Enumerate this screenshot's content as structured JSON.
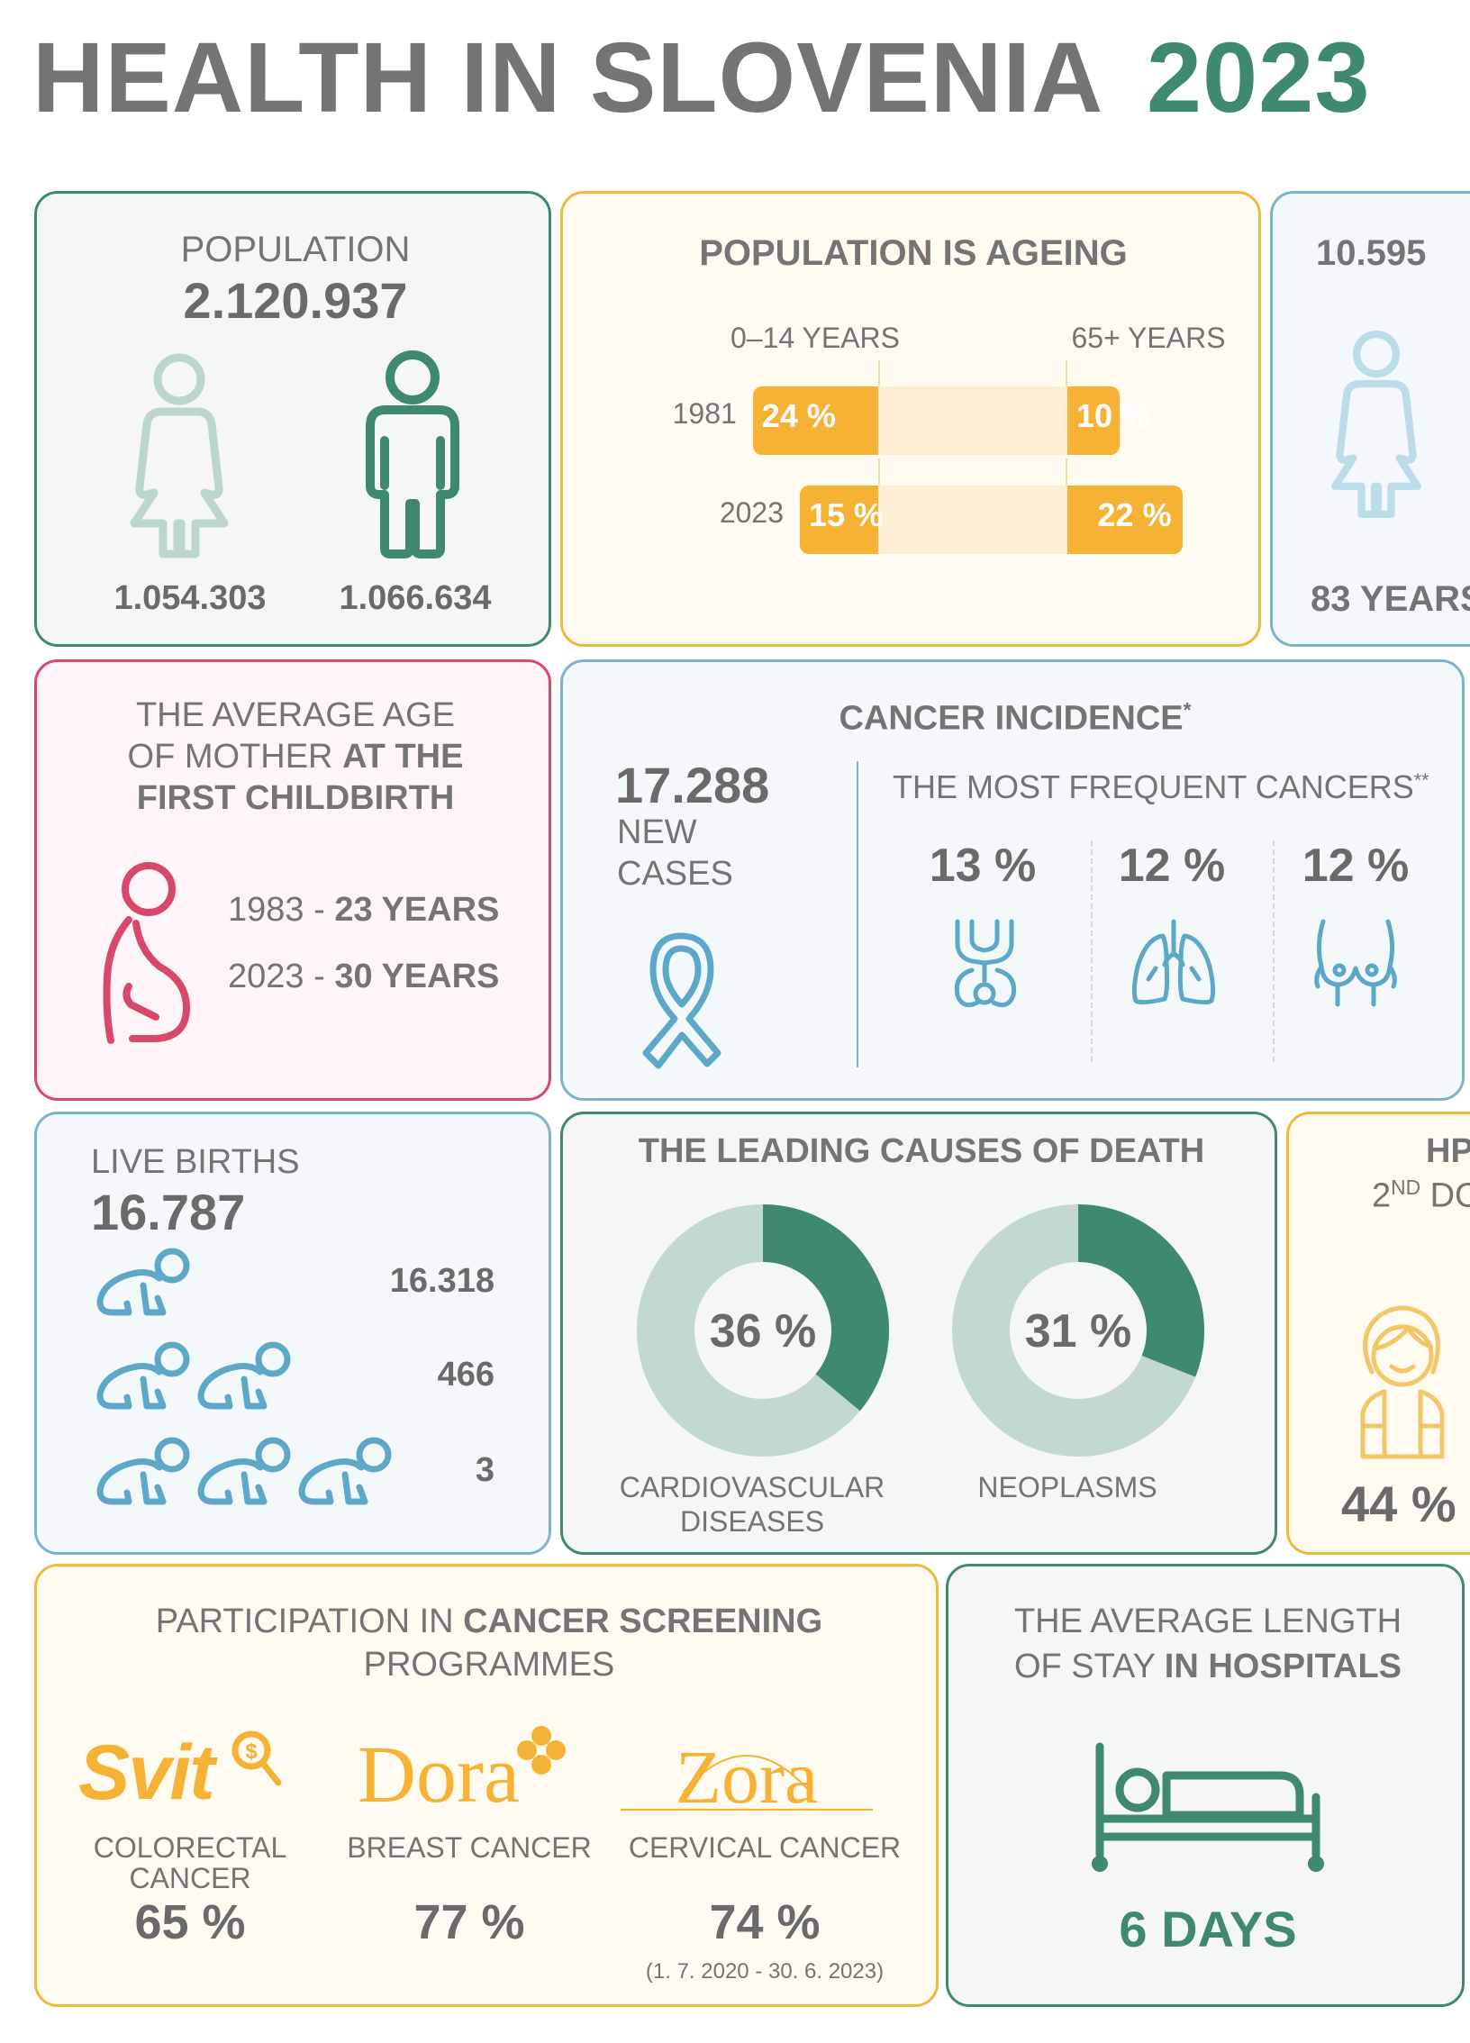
{
  "title": {
    "main": "HEALTH IN SLOVENIA",
    "year": "2023"
  },
  "colors": {
    "green": "#3f8a6f",
    "yellow": "#f6b234",
    "blue": "#5da8c8",
    "pink": "#d9476b",
    "gray": "#747474"
  },
  "population": {
    "label": "POPULATION",
    "total": "2.120.937",
    "female": "1.054.303",
    "male": "1.066.634",
    "icons": {
      "female": "woman-icon",
      "male": "man-icon"
    }
  },
  "ageing": {
    "title": "POPULATION IS AGEING",
    "col_young": "0–14 YEARS",
    "col_old": "65+ YEARS",
    "rows": [
      {
        "year": "1981",
        "young": "24 %",
        "old": "10 %",
        "young_value": 24,
        "old_value": 10
      },
      {
        "year": "2023",
        "young": "15 %",
        "old": "22 %",
        "young_value": 15,
        "old_value": 22
      }
    ]
  },
  "life": {
    "value": "10.595",
    "years": "83 YEARS",
    "icon": "woman-icon"
  },
  "mother": {
    "line1": "THE AVERAGE AGE",
    "line2_plain": "OF MOTHER ",
    "line2_bold": "AT THE",
    "line3_bold": "FIRST CHILDBIRTH",
    "icon": "pregnant-woman-icon",
    "rows": [
      {
        "year": "1983 - ",
        "value": "23 YEARS"
      },
      {
        "year": "2023 - ",
        "value": "30 YEARS"
      }
    ]
  },
  "cancer": {
    "title": "CANCER INCIDENCE",
    "title_sup": "*",
    "new_count": "17.288",
    "new_label1": "NEW",
    "new_label2": "CASES",
    "frequent_title": "THE MOST FREQUENT CANCERS",
    "frequent_sup": "**",
    "items": [
      {
        "pct": "13 %",
        "icon": "prostate-icon"
      },
      {
        "pct": "12 %",
        "icon": "lungs-icon"
      },
      {
        "pct": "12 %",
        "icon": "breast-icon"
      }
    ],
    "ribbon_icon": "cancer-ribbon-icon"
  },
  "births": {
    "label": "LIVE BIRTHS",
    "total": "16.787",
    "rows": [
      {
        "value": "16.318",
        "babies": 1
      },
      {
        "value": "466",
        "babies": 2
      },
      {
        "value": "3",
        "babies": 3
      }
    ],
    "icon": "crawling-baby-icon"
  },
  "death": {
    "title": "THE LEADING CAUSES OF DEATH",
    "items": [
      {
        "pct": "36 %",
        "value": 36,
        "label1": "CARDIOVASCULAR",
        "label2": "DISEASES"
      },
      {
        "pct": "31 %",
        "value": 31,
        "label1": "NEOPLASMS",
        "label2": ""
      }
    ]
  },
  "hpv": {
    "title": "HP",
    "sub": "2",
    "sub_sup": "ND",
    "sub_rest": " DO",
    "pct": "44 %",
    "icon": "girl-icon"
  },
  "screening": {
    "title_plain": "PARTICIPATION IN ",
    "title_bold": "CANCER SCREENING",
    "title_line2": "PROGRAMMES",
    "programs": [
      {
        "logo": "Svit",
        "label1": "COLORECTAL",
        "label2": "CANCER",
        "pct": "65 %"
      },
      {
        "logo": "Dora",
        "label1": "BREAST CANCER",
        "label2": "",
        "pct": "77 %"
      },
      {
        "logo": "Zora",
        "label1": "CERVICAL CANCER",
        "label2": "",
        "pct": "74 %",
        "note": "(1. 7. 2020 - 30. 6. 2023)"
      }
    ]
  },
  "hospital": {
    "line1": "THE AVERAGE LENGTH",
    "line2_plain": "OF STAY ",
    "line2_bold": "IN HOSPITALS",
    "value": "6 DAYS",
    "icon": "hospital-bed-icon"
  }
}
